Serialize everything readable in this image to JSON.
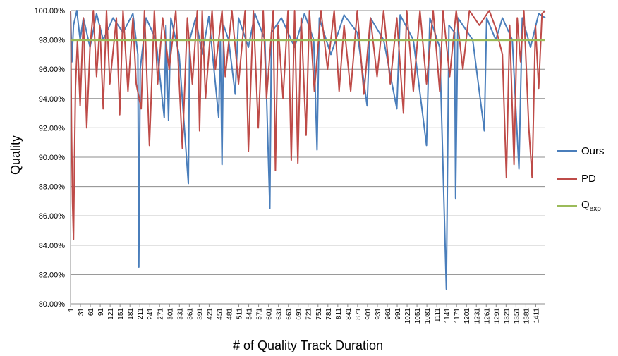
{
  "chart_data": {
    "type": "line",
    "xlabel": "# of Quality Track Duration",
    "ylabel": "Quality",
    "ylim": [
      80,
      100
    ],
    "yticks": [
      "80.00%",
      "82.00%",
      "84.00%",
      "86.00%",
      "88.00%",
      "90.00%",
      "92.00%",
      "94.00%",
      "96.00%",
      "98.00%",
      "100.00%"
    ],
    "xticks": [
      "1",
      "31",
      "61",
      "91",
      "121",
      "151",
      "181",
      "211",
      "241",
      "271",
      "301",
      "331",
      "361",
      "391",
      "421",
      "451",
      "481",
      "511",
      "541",
      "571",
      "601",
      "631",
      "661",
      "691",
      "721",
      "751",
      "781",
      "811",
      "841",
      "871",
      "901",
      "931",
      "961",
      "991",
      "1021",
      "1051",
      "1081",
      "1111",
      "1141",
      "1171",
      "1201",
      "1231",
      "1261",
      "1291",
      "1321",
      "1351",
      "1381",
      "1411"
    ],
    "x_count": 1440,
    "grid": "horizontal",
    "legend_position": "right",
    "series": [
      {
        "name": "Ours",
        "color": "#4a7ebb",
        "points": [
          [
            1,
            100
          ],
          [
            5,
            96.5
          ],
          [
            10,
            99
          ],
          [
            20,
            100
          ],
          [
            30,
            98
          ],
          [
            40,
            99.5
          ],
          [
            60,
            97.5
          ],
          [
            80,
            99.8
          ],
          [
            100,
            98
          ],
          [
            130,
            99.5
          ],
          [
            160,
            98.5
          ],
          [
            190,
            99.8
          ],
          [
            205,
            97
          ],
          [
            208,
            82.5
          ],
          [
            212,
            96
          ],
          [
            230,
            99.5
          ],
          [
            260,
            98
          ],
          [
            285,
            92.7
          ],
          [
            290,
            99
          ],
          [
            298,
            92.5
          ],
          [
            305,
            99.5
          ],
          [
            330,
            97
          ],
          [
            358,
            88.2
          ],
          [
            362,
            98
          ],
          [
            380,
            99.5
          ],
          [
            400,
            97
          ],
          [
            420,
            99.6
          ],
          [
            450,
            92.7
          ],
          [
            455,
            98
          ],
          [
            460,
            89.5
          ],
          [
            465,
            99
          ],
          [
            480,
            98
          ],
          [
            500,
            94.3
          ],
          [
            510,
            99.5
          ],
          [
            540,
            97.5
          ],
          [
            560,
            99.8
          ],
          [
            590,
            98
          ],
          [
            605,
            86.5
          ],
          [
            610,
            98.5
          ],
          [
            640,
            99.5
          ],
          [
            680,
            97.5
          ],
          [
            710,
            99.8
          ],
          [
            738,
            98
          ],
          [
            748,
            90.5
          ],
          [
            755,
            99.5
          ],
          [
            790,
            97
          ],
          [
            830,
            99.7
          ],
          [
            870,
            98.5
          ],
          [
            900,
            93.5
          ],
          [
            910,
            99.5
          ],
          [
            950,
            98
          ],
          [
            990,
            93.3
          ],
          [
            1000,
            99.7
          ],
          [
            1040,
            98
          ],
          [
            1080,
            90.8
          ],
          [
            1090,
            99.5
          ],
          [
            1120,
            97.5
          ],
          [
            1140,
            81
          ],
          [
            1148,
            99
          ],
          [
            1165,
            98.5
          ],
          [
            1168,
            87.2
          ],
          [
            1175,
            99.5
          ],
          [
            1220,
            98
          ],
          [
            1255,
            91.8
          ],
          [
            1262,
            99.5
          ],
          [
            1290,
            98
          ],
          [
            1310,
            99.5
          ],
          [
            1340,
            98
          ],
          [
            1360,
            89.2
          ],
          [
            1370,
            99.5
          ],
          [
            1395,
            97.5
          ],
          [
            1420,
            99.8
          ],
          [
            1440,
            99.5
          ]
        ]
      },
      {
        "name": "PD",
        "color": "#be4b48",
        "points": [
          [
            1,
            100
          ],
          [
            4,
            91.8
          ],
          [
            7,
            86.9
          ],
          [
            10,
            84.4
          ],
          [
            13,
            90
          ],
          [
            16,
            94.8
          ],
          [
            22,
            98
          ],
          [
            30,
            93.5
          ],
          [
            40,
            99.5
          ],
          [
            50,
            92
          ],
          [
            60,
            97.5
          ],
          [
            70,
            100
          ],
          [
            80,
            95.5
          ],
          [
            90,
            99
          ],
          [
            100,
            93.3
          ],
          [
            110,
            100
          ],
          [
            120,
            95
          ],
          [
            140,
            99.5
          ],
          [
            150,
            92.9
          ],
          [
            160,
            100
          ],
          [
            175,
            94.5
          ],
          [
            190,
            99.5
          ],
          [
            200,
            95
          ],
          [
            215,
            93.3
          ],
          [
            225,
            100
          ],
          [
            240,
            90.8
          ],
          [
            255,
            100
          ],
          [
            265,
            95
          ],
          [
            280,
            99.5
          ],
          [
            300,
            96
          ],
          [
            320,
            100
          ],
          [
            340,
            90.6
          ],
          [
            355,
            99.5
          ],
          [
            370,
            95
          ],
          [
            385,
            100
          ],
          [
            392,
            91.8
          ],
          [
            400,
            100
          ],
          [
            410,
            94
          ],
          [
            430,
            100
          ],
          [
            440,
            96
          ],
          [
            460,
            100
          ],
          [
            470,
            95.5
          ],
          [
            490,
            100
          ],
          [
            510,
            95
          ],
          [
            530,
            100
          ],
          [
            540,
            90.4
          ],
          [
            555,
            100
          ],
          [
            570,
            92
          ],
          [
            585,
            100
          ],
          [
            595,
            94
          ],
          [
            615,
            100
          ],
          [
            622,
            89.1
          ],
          [
            630,
            99
          ],
          [
            645,
            94
          ],
          [
            660,
            100
          ],
          [
            670,
            89.8
          ],
          [
            680,
            100
          ],
          [
            690,
            89.6
          ],
          [
            700,
            99.5
          ],
          [
            715,
            91.5
          ],
          [
            725,
            100
          ],
          [
            740,
            94.5
          ],
          [
            760,
            100
          ],
          [
            780,
            96
          ],
          [
            800,
            100
          ],
          [
            815,
            94.5
          ],
          [
            830,
            99
          ],
          [
            850,
            94.5
          ],
          [
            870,
            100
          ],
          [
            890,
            94.3
          ],
          [
            910,
            99.5
          ],
          [
            930,
            95.5
          ],
          [
            950,
            100
          ],
          [
            970,
            95
          ],
          [
            990,
            99.5
          ],
          [
            1010,
            93
          ],
          [
            1020,
            100
          ],
          [
            1040,
            94.5
          ],
          [
            1060,
            100
          ],
          [
            1080,
            95
          ],
          [
            1100,
            100
          ],
          [
            1120,
            94.5
          ],
          [
            1130,
            100
          ],
          [
            1150,
            95.5
          ],
          [
            1170,
            100
          ],
          [
            1190,
            96
          ],
          [
            1210,
            100
          ],
          [
            1240,
            99
          ],
          [
            1270,
            100
          ],
          [
            1290,
            98.8
          ],
          [
            1310,
            97
          ],
          [
            1322,
            88.6
          ],
          [
            1332,
            99
          ],
          [
            1345,
            89.5
          ],
          [
            1355,
            99.5
          ],
          [
            1365,
            96.5
          ],
          [
            1375,
            100
          ],
          [
            1390,
            92
          ],
          [
            1400,
            88.6
          ],
          [
            1410,
            99
          ],
          [
            1420,
            94.7
          ],
          [
            1430,
            99.8
          ],
          [
            1440,
            100
          ]
        ]
      },
      {
        "name": "Qexp",
        "color": "#9bbb59",
        "points": [
          [
            1,
            98
          ],
          [
            1440,
            98
          ]
        ]
      }
    ],
    "legend": [
      {
        "label": "Ours",
        "sub": "",
        "color": "#4a7ebb"
      },
      {
        "label": "PD",
        "sub": "",
        "color": "#be4b48"
      },
      {
        "label": "Q",
        "sub": "exp",
        "color": "#9bbb59"
      }
    ]
  }
}
